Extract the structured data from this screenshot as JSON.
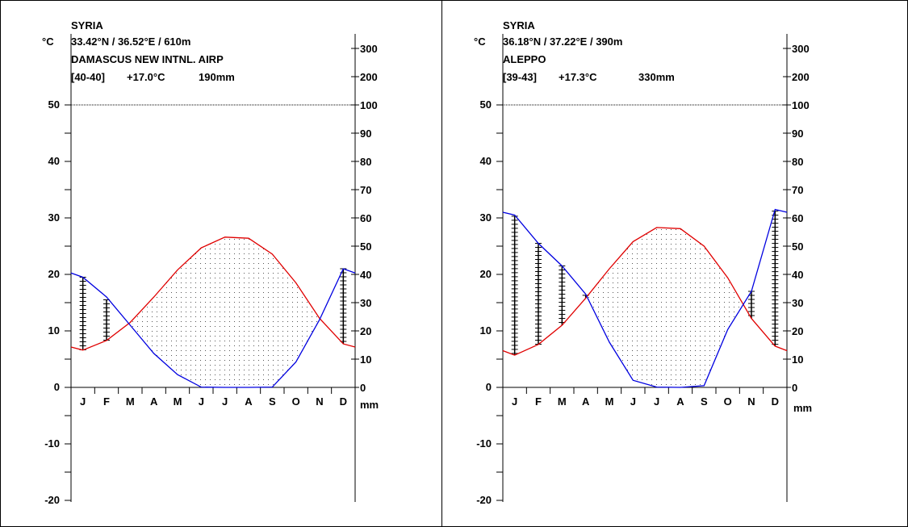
{
  "page": {
    "border_color": "#000000"
  },
  "charts": [
    {
      "country": "SYRIA",
      "coords": "33.42°N / 36.52°E / 610m",
      "station": "DAMASCUS NEW INTNL. AIRP",
      "period": "[40-40]",
      "mean_temp": "+17.0°C",
      "annual_precip": "190mm"
    },
    {
      "country": "SYRIA",
      "coords": "36.18°N / 37.22°E / 390m",
      "station": "ALEPPO",
      "period": "[39-43]",
      "mean_temp": "+17.3°C",
      "annual_precip": "330mm"
    }
  ],
  "chart_data": [
    {
      "type": "line",
      "title": "SYRIA",
      "temp_axis_unit": "°C",
      "precip_axis_unit": "mm",
      "categories": [
        "J",
        "F",
        "M",
        "A",
        "M",
        "J",
        "J",
        "A",
        "S",
        "O",
        "N",
        "D"
      ],
      "temp_ylim": [
        -20,
        50
      ],
      "temp_ticks": [
        -20,
        -10,
        0,
        10,
        20,
        30,
        40,
        50
      ],
      "precip_ticks": [
        0,
        10,
        20,
        30,
        40,
        50,
        60,
        70,
        80,
        90,
        100,
        200,
        300
      ],
      "series": [
        {
          "name": "temperature",
          "unit": "°C",
          "color": "#e00000",
          "values": [
            6.6,
            8.3,
            11.5,
            16.0,
            20.8,
            24.7,
            26.6,
            26.4,
            23.6,
            18.5,
            12.2,
            7.7
          ]
        },
        {
          "name": "precipitation",
          "unit": "mm",
          "color": "#0000e0",
          "values": [
            39.0,
            32.0,
            22.0,
            12.0,
            4.5,
            0.1,
            0.0,
            0.0,
            0.1,
            9.0,
            24.0,
            42.0
          ]
        }
      ],
      "temp_daily_range": [
        [
          6.6,
          19.5
        ],
        [
          8.3,
          15.5
        ],
        null,
        null,
        null,
        null,
        null,
        null,
        null,
        null,
        null,
        [
          7.7,
          21.0
        ]
      ]
    },
    {
      "type": "line",
      "title": "SYRIA",
      "temp_axis_unit": "°C",
      "precip_axis_unit": "mm",
      "categories": [
        "J",
        "F",
        "M",
        "A",
        "M",
        "J",
        "J",
        "A",
        "S",
        "O",
        "N",
        "D"
      ],
      "temp_ylim": [
        -20,
        50
      ],
      "temp_ticks": [
        -20,
        -10,
        0,
        10,
        20,
        30,
        40,
        50
      ],
      "precip_ticks": [
        0,
        10,
        20,
        30,
        40,
        50,
        60,
        70,
        80,
        90,
        100,
        200,
        300
      ],
      "series": [
        {
          "name": "temperature",
          "unit": "°C",
          "color": "#e00000",
          "values": [
            5.7,
            7.6,
            11.0,
            15.8,
            21.0,
            25.8,
            28.3,
            28.1,
            25.0,
            19.4,
            12.2,
            7.3
          ]
        },
        {
          "name": "precipitation",
          "unit": "mm",
          "color": "#0000e0",
          "values": [
            61.0,
            51.0,
            43.0,
            33.0,
            16.0,
            2.5,
            0.1,
            0.0,
            0.6,
            20.5,
            34.0,
            63.0
          ]
        }
      ],
      "temp_daily_range": [
        [
          5.7,
          30.3
        ],
        [
          7.6,
          25.5
        ],
        [
          11.0,
          21.5
        ],
        [
          15.8,
          16.3
        ],
        null,
        null,
        null,
        null,
        null,
        null,
        [
          12.2,
          17.0
        ],
        [
          7.3,
          31.2
        ]
      ]
    }
  ]
}
